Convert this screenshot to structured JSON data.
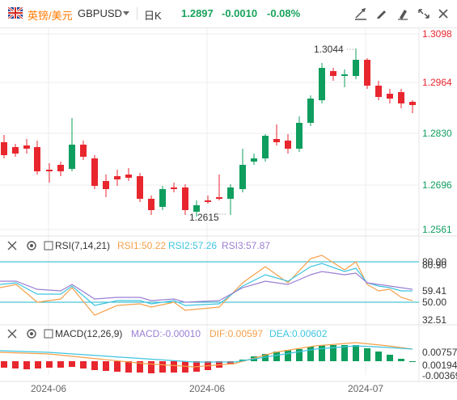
{
  "header": {
    "pair_label": "英镑/美元",
    "symbol": "GBPUSD",
    "period": "日K",
    "price": "1.2897",
    "change": "-0.0010",
    "change_pct": "-0.08%"
  },
  "price_axis": [
    "1.3098",
    "1.2964",
    "1.2830",
    "1.2696",
    "1.2561"
  ],
  "annotations": {
    "high": "1.3044",
    "low": "1.2615"
  },
  "rsi": {
    "title": "RSI(7,14,21)",
    "rsi1": "RSI1:50.22",
    "rsi2": "RSI2:57.26",
    "rsi3": "RSI3:57.87",
    "axis": [
      "80.00",
      "80.90",
      "59.41",
      "50.00",
      "32.51"
    ]
  },
  "macd": {
    "title": "MACD(12,26,9)",
    "macd": "MACD:-0.00010",
    "dif": "DIF:0.00597",
    "dea": "DEA:0.00602",
    "axis": [
      "0.00757",
      "0.00194",
      "-0.00369"
    ]
  },
  "dates": [
    "2024-06",
    "2024-06",
    "2024-07"
  ],
  "colors": {
    "up": "#0f9e5e",
    "down": "#e8262e",
    "accent": "#ff7a00",
    "rsi1": "#f5a04a",
    "rsi2": "#3ec5e0",
    "rsi3": "#9b7fd3",
    "level": "#1fb6c8"
  },
  "icons": [
    "flag-uk-icon",
    "chevron-down-icon",
    "draw-icon",
    "edit-icon",
    "pen-icon",
    "fullscreen-icon",
    "close-icon",
    "eye-icon",
    "settings-icon"
  ]
}
